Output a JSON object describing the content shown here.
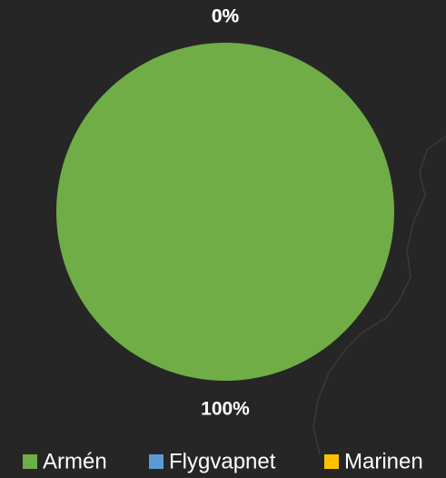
{
  "chart_data": {
    "type": "pie",
    "series": [
      {
        "name": "Armén",
        "color": "#70ad47",
        "values": [
          100
        ],
        "value_labels": [
          "100%"
        ]
      },
      {
        "name": "Flygvapnet",
        "color": "#5b9bd5",
        "values": [
          0
        ],
        "value_labels": [
          "0%"
        ]
      },
      {
        "name": "Marinen",
        "color": "#ffc000",
        "values": [
          0
        ],
        "value_labels": [
          "0%"
        ]
      }
    ],
    "legend": "bottom"
  }
}
